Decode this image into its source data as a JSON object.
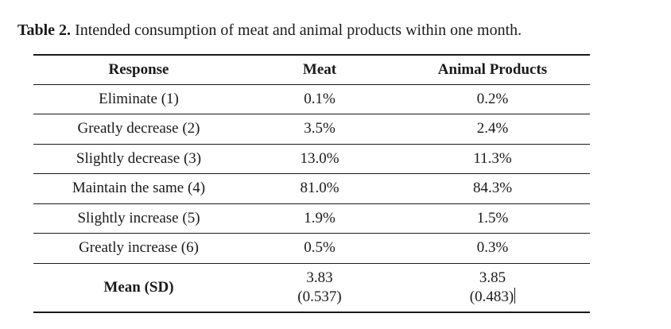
{
  "caption": {
    "label": "Table 2.",
    "text": "Intended consumption of meat and animal products within one month."
  },
  "table": {
    "headers": [
      "Response",
      "Meat",
      "Animal Products"
    ],
    "rows": [
      {
        "response": "Eliminate (1)",
        "meat": "0.1%",
        "animal": "0.2%"
      },
      {
        "response": "Greatly decrease (2)",
        "meat": "3.5%",
        "animal": "2.4%"
      },
      {
        "response": "Slightly decrease (3)",
        "meat": "13.0%",
        "animal": "11.3%"
      },
      {
        "response": "Maintain the same (4)",
        "meat": "81.0%",
        "animal": "84.3%"
      },
      {
        "response": "Slightly increase (5)",
        "meat": "1.9%",
        "animal": "1.5%"
      },
      {
        "response": "Greatly increase (6)",
        "meat": "0.5%",
        "animal": "0.3%"
      }
    ],
    "mean": {
      "label": "Mean (SD)",
      "meat_mean": "3.83",
      "meat_sd": "(0.537)",
      "animal_mean": "3.85",
      "animal_sd": "(0.483)"
    }
  }
}
